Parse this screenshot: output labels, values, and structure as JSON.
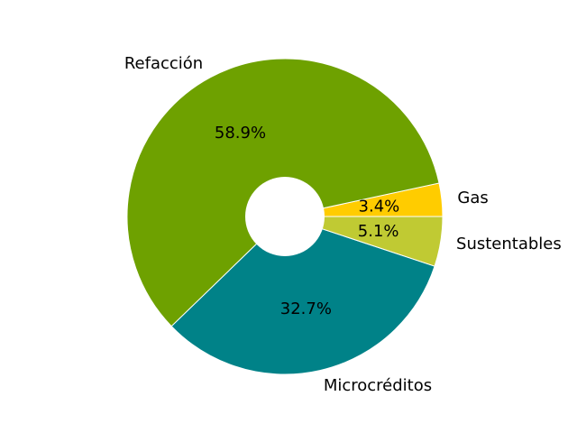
{
  "chart_data": {
    "type": "pie",
    "donut": true,
    "title": "",
    "slices": [
      {
        "label": "Gas",
        "value": 3.4,
        "pct_label": "3.4%",
        "color": "#ffcc00"
      },
      {
        "label": "Refacción",
        "value": 58.9,
        "pct_label": "58.9%",
        "color": "#6ea100"
      },
      {
        "label": "Microcréditos",
        "value": 32.7,
        "pct_label": "32.7%",
        "color": "#008288"
      },
      {
        "label": "Sustentables",
        "value": 5.1,
        "pct_label": "5.1%",
        "color": "#c0ca33"
      }
    ],
    "start_angle_deg": 0,
    "direction": "counterclockwise",
    "edge_color": "#ffffff"
  }
}
